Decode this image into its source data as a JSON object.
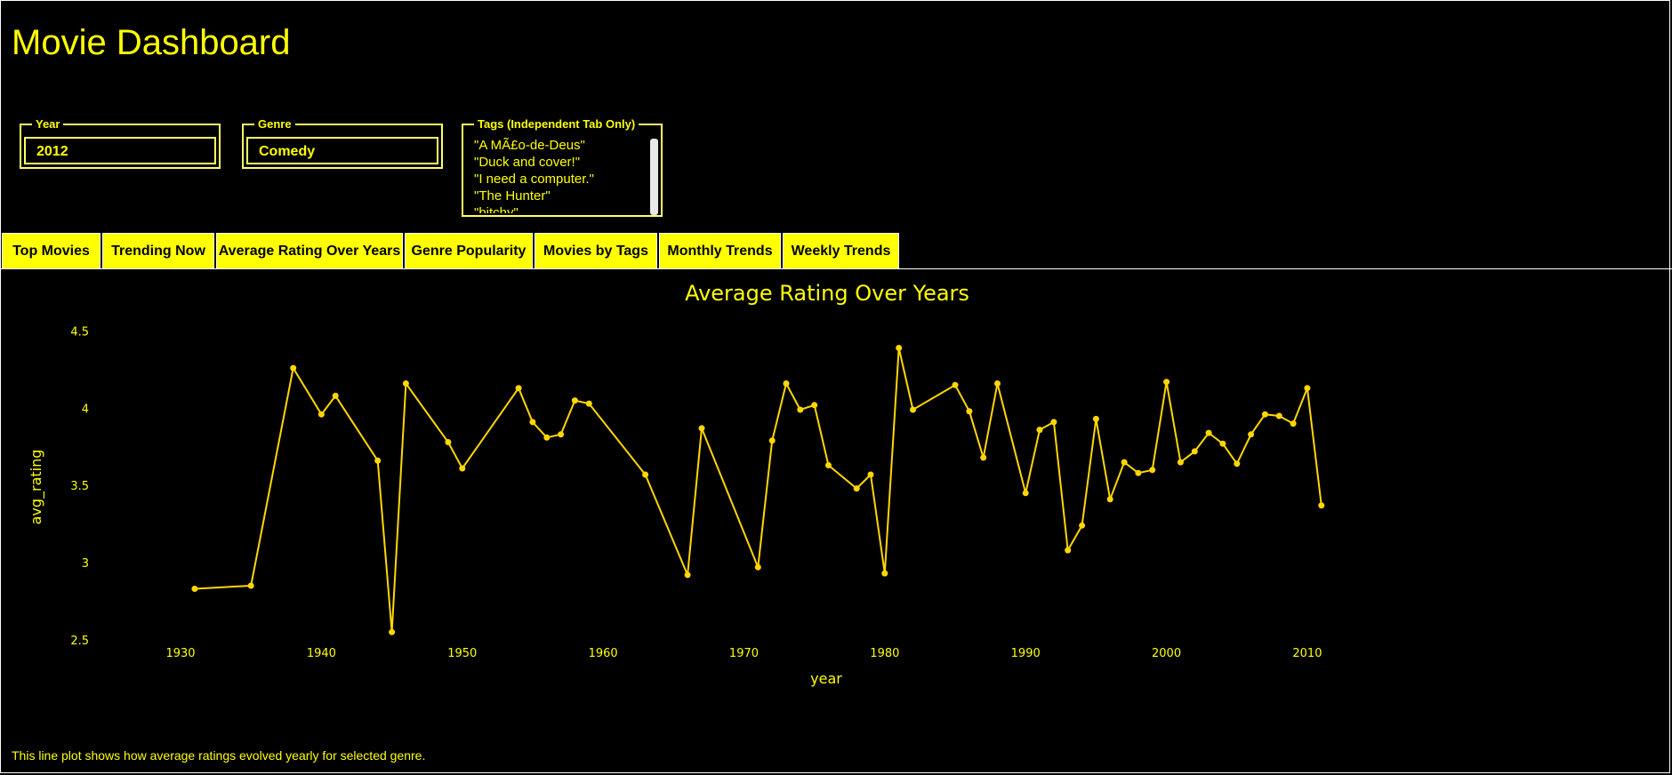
{
  "app": {
    "title": "Movie Dashboard"
  },
  "filters": {
    "year": {
      "label": "Year",
      "value": "2012"
    },
    "genre": {
      "label": "Genre",
      "value": "Comedy"
    },
    "tags": {
      "label": "Tags (Independent Tab Only)",
      "options": [
        "\"A MÃ£o-de-Deus\"",
        "\"Duck and cover!\"",
        "\"I need a computer.\"",
        "\"The Hunter\"",
        "\"bitchy\""
      ]
    }
  },
  "tabs": [
    {
      "label": "Top Movies"
    },
    {
      "label": "Trending Now"
    },
    {
      "label": "Average Rating Over Years"
    },
    {
      "label": "Genre Popularity"
    },
    {
      "label": "Movies by Tags"
    },
    {
      "label": "Monthly Trends"
    },
    {
      "label": "Weekly Trends"
    }
  ],
  "colors": {
    "accent": "#ffff00",
    "line": "#ffd700",
    "background": "#000000"
  },
  "chart_data": {
    "type": "line",
    "title": "Average Rating Over Years",
    "xlabel": "year",
    "ylabel": "avg_rating",
    "xlim": [
      1924,
      2028
    ],
    "ylim": [
      2.43,
      4.56
    ],
    "xticks": [
      1930,
      1940,
      1950,
      1960,
      1970,
      1980,
      1990,
      2000,
      2010
    ],
    "yticks": [
      2.5,
      3,
      3.5,
      4,
      4.5
    ],
    "ytick_labels": [
      "2.5",
      "3",
      "3.5",
      "4",
      "4.5"
    ],
    "grid": false,
    "legend": "none",
    "x": [
      1931,
      1935,
      1938,
      1940,
      1941,
      1944,
      1945,
      1946,
      1949,
      1950,
      1954,
      1955,
      1956,
      1957,
      1958,
      1959,
      1963,
      1966,
      1967,
      1971,
      1972,
      1973,
      1974,
      1975,
      1976,
      1978,
      1979,
      1980,
      1981,
      1982,
      1985,
      1986,
      1987,
      1988,
      1990,
      1991,
      1992,
      1993,
      1994,
      1995,
      1996,
      1997,
      1998,
      1999,
      2000,
      2001,
      2002,
      2003,
      2004,
      2005,
      2006,
      2007,
      2008,
      2009,
      2010,
      2011
    ],
    "y": [
      2.83,
      2.85,
      4.26,
      3.96,
      4.08,
      3.66,
      2.55,
      4.16,
      3.78,
      3.61,
      4.13,
      3.91,
      3.81,
      3.83,
      4.05,
      4.03,
      3.57,
      2.92,
      3.87,
      2.97,
      3.79,
      4.16,
      3.99,
      4.02,
      3.63,
      3.48,
      3.57,
      2.93,
      4.39,
      3.99,
      4.15,
      3.98,
      3.68,
      4.16,
      3.45,
      3.86,
      3.91,
      3.08,
      3.24,
      3.93,
      3.41,
      3.65,
      3.58,
      3.6,
      4.17,
      3.65,
      3.72,
      3.84,
      3.77,
      3.64,
      3.83,
      3.96,
      3.95,
      3.9,
      4.13,
      3.37
    ]
  },
  "footer": {
    "text": "This line plot shows how average ratings evolved yearly for selected genre."
  }
}
